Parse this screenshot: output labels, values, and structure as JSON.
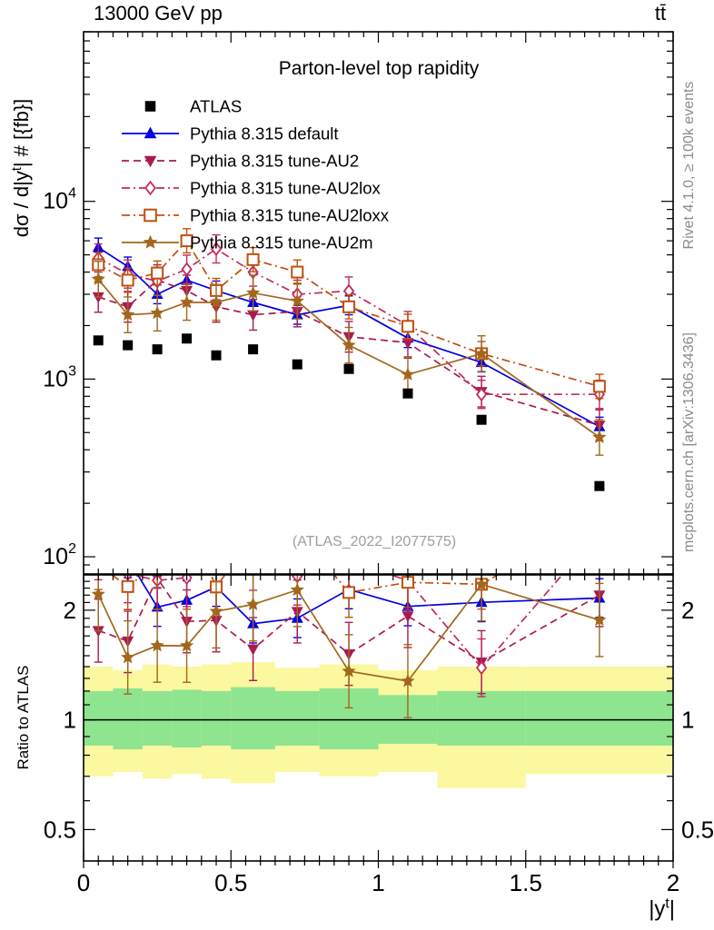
{
  "header": {
    "left": "13000 GeV pp",
    "right": "tt̄"
  },
  "side_notes": {
    "top_right": "Rivet 4.1.0, ≥ 100k events",
    "bottom_right": "mcplots.cern.ch [arXiv:1306.3436]"
  },
  "title": "Parton-level top rapidity",
  "watermark": "(ATLAS_2022_I2077575)",
  "axes": {
    "y_main_label": {
      "prefix": "dσ / d|y",
      "sup": "t",
      "suffix": "| # [{fb}]"
    },
    "y_ratio_label": "Ratio to ATLAS",
    "x_label": {
      "prefix": "|y",
      "sup": "t",
      "suffix": "|"
    },
    "x_tick_labels": [
      "0",
      "0.5",
      "1",
      "1.5",
      "2"
    ],
    "x_tick_values": [
      0,
      0.5,
      1,
      1.5,
      2
    ],
    "y_main_tick_values": [
      100,
      1000,
      10000
    ],
    "y_main_tick_exponents": [
      "2",
      "3",
      "4"
    ],
    "y_ratio_tick_labels": [
      "2",
      "1",
      "0.5"
    ],
    "y_ratio_tick_values": [
      2,
      1,
      0.5
    ]
  },
  "chart_data": {
    "type": "line",
    "title": "Parton-level top rapidity",
    "xlabel": "|y^t|",
    "ylabel": "dσ / d|y^t| # [fb]",
    "x": [
      0.05,
      0.15,
      0.25,
      0.35,
      0.45,
      0.575,
      0.725,
      0.9,
      1.1,
      1.35,
      1.75
    ],
    "bin_edges": [
      0,
      0.1,
      0.2,
      0.3,
      0.4,
      0.5,
      0.65,
      0.8,
      1.0,
      1.2,
      1.5,
      2.0
    ],
    "xlim": [
      0,
      2
    ],
    "main_yscale": "log",
    "main_ylim": [
      80,
      90000
    ],
    "ratio_yscale": "log",
    "ratio_ylim": [
      0.41,
      2.5
    ],
    "ratio_label": "Ratio to ATLAS",
    "series": [
      {
        "name": "ATLAS",
        "role": "reference-data",
        "marker": "filled-square",
        "color": "#000000",
        "line": "none",
        "err_frac": 0,
        "values": [
          1650,
          1550,
          1470,
          1690,
          1360,
          1470,
          1210,
          1140,
          830,
          590,
          250
        ]
      },
      {
        "name": "Pythia 8.315 default",
        "role": "mc",
        "marker": "filled-triangle-up",
        "color": "#0000e0",
        "line": "solid",
        "err_frac": 0.13,
        "values": [
          5500,
          4300,
          3000,
          3600,
          3150,
          2700,
          2300,
          2600,
          1700,
          1240,
          540
        ]
      },
      {
        "name": "Pythia 8.315 tune-AU2",
        "role": "mc",
        "marker": "filled-triangle-down",
        "color": "#aa1a52",
        "line": "dashed",
        "err_frac": 0.22,
        "values": [
          2900,
          2550,
          3600,
          3150,
          2550,
          2300,
          2400,
          1730,
          1600,
          850,
          550
        ]
      },
      {
        "name": "Pythia 8.315 tune-AU2lox",
        "role": "mc",
        "marker": "open-diamond",
        "color": "#c22a5c",
        "line": "dashdot",
        "err_frac": 0.2,
        "values": [
          4800,
          3900,
          3550,
          4150,
          5400,
          4000,
          3000,
          3130,
          2000,
          820,
          820
        ]
      },
      {
        "name": "Pythia 8.315 tune-AU2loxx",
        "role": "mc",
        "marker": "open-square",
        "color": "#c0500e",
        "line": "dashdot",
        "err_frac": 0.17,
        "values": [
          4400,
          3600,
          3950,
          6000,
          3150,
          4700,
          4000,
          2550,
          1980,
          1390,
          910
        ]
      },
      {
        "name": "Pythia 8.315 tune-AU2m",
        "role": "mc",
        "marker": "filled-star",
        "color": "#a2671b",
        "line": "solid",
        "err_frac": 0.26,
        "values": [
          3650,
          2300,
          2350,
          2700,
          2700,
          3050,
          2750,
          1550,
          1060,
          1390,
          470
        ]
      }
    ],
    "ratio_bands": {
      "yellow": {
        "color": "#fbf8a0",
        "lo": [
          0.7,
          0.72,
          0.69,
          0.71,
          0.69,
          0.67,
          0.72,
          0.7,
          0.72,
          0.65,
          0.71
        ],
        "hi": [
          1.4,
          1.37,
          1.42,
          1.4,
          1.42,
          1.44,
          1.39,
          1.42,
          1.37,
          1.4,
          1.4
        ]
      },
      "green": {
        "color": "#8fe48f",
        "lo": [
          0.85,
          0.83,
          0.85,
          0.84,
          0.85,
          0.83,
          0.85,
          0.83,
          0.86,
          0.85,
          0.85
        ],
        "hi": [
          1.2,
          1.22,
          1.2,
          1.21,
          1.2,
          1.23,
          1.2,
          1.22,
          1.17,
          1.2,
          1.2
        ]
      }
    },
    "legend_position": "top-left-inside",
    "grid": false
  }
}
